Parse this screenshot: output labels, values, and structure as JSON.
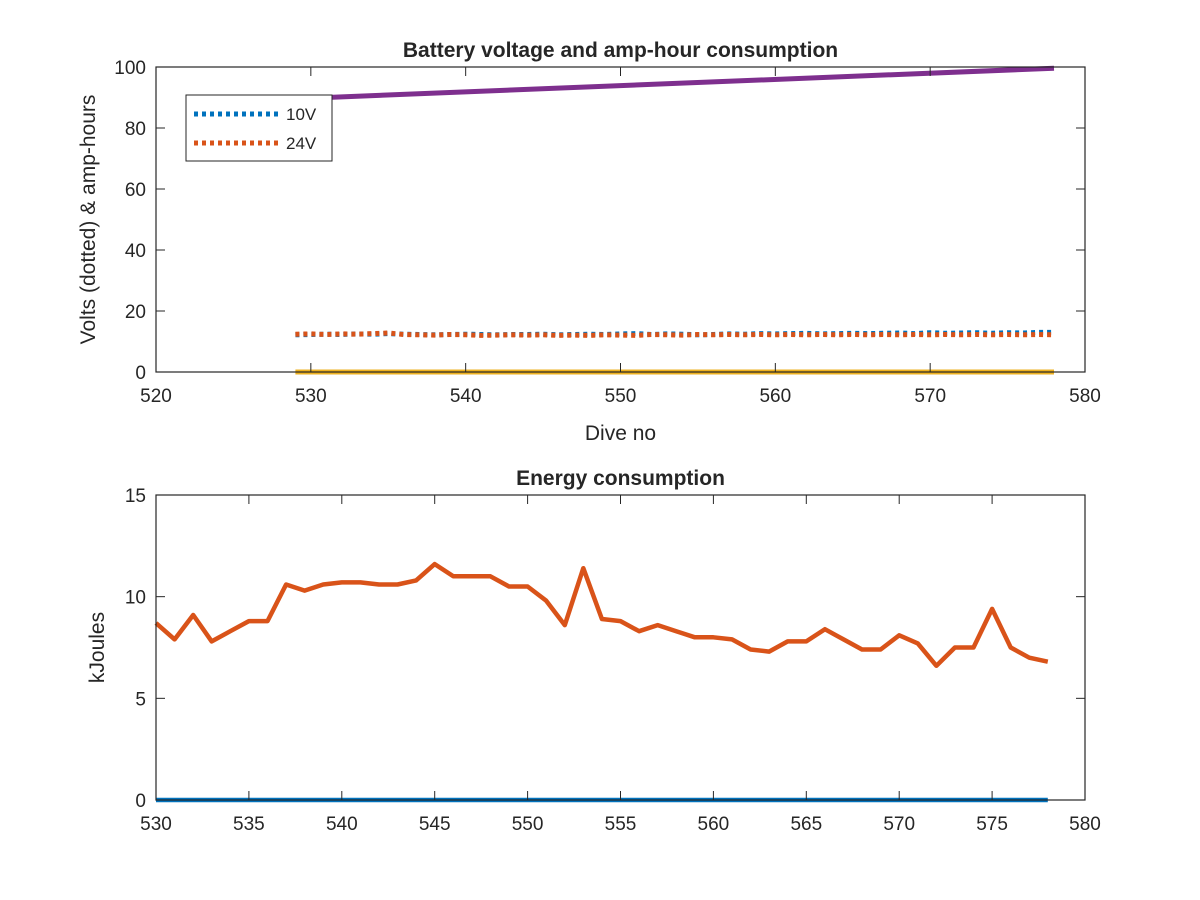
{
  "chart_data": [
    {
      "type": "line",
      "title": "Battery voltage and amp-hour consumption",
      "xlabel": "Dive no",
      "ylabel": "Volts (dotted) & amp-hours",
      "xlim": [
        520,
        580
      ],
      "ylim": [
        0,
        100
      ],
      "xticks": [
        "520",
        "530",
        "540",
        "550",
        "560",
        "570",
        "580"
      ],
      "yticks": [
        "0",
        "20",
        "40",
        "60",
        "80",
        "100"
      ],
      "legend_position": "top-left",
      "series": [
        {
          "name": "10V",
          "style": "dotted",
          "color": "#0072BD",
          "x": [
            529,
            530,
            531,
            532,
            533,
            534,
            535,
            536,
            537,
            538,
            539,
            540,
            541,
            542,
            543,
            544,
            545,
            546,
            547,
            548,
            549,
            550,
            551,
            552,
            553,
            554,
            555,
            556,
            557,
            558,
            559,
            560,
            561,
            562,
            563,
            564,
            565,
            566,
            567,
            568,
            569,
            570,
            571,
            572,
            573,
            574,
            575,
            576,
            577,
            578
          ],
          "y": [
            12.2,
            12.3,
            12.4,
            12.3,
            12.5,
            12.4,
            12.6,
            12.4,
            12.3,
            12.2,
            12.3,
            12.4,
            12.3,
            12.2,
            12.3,
            12.3,
            12.4,
            12.2,
            12.3,
            12.4,
            12.3,
            12.5,
            12.6,
            12.3,
            12.5,
            12.4,
            12.2,
            12.3,
            12.5,
            12.4,
            12.6,
            12.5,
            12.6,
            12.7,
            12.5,
            12.6,
            12.7,
            12.6,
            12.7,
            12.8,
            12.6,
            12.9,
            12.7,
            12.8,
            12.9,
            12.7,
            12.9,
            12.8,
            13.0,
            13.0
          ]
        },
        {
          "name": "24V",
          "style": "dotted",
          "color": "#D95319",
          "x": [
            529,
            530,
            531,
            532,
            533,
            534,
            535,
            536,
            537,
            538,
            539,
            540,
            541,
            542,
            543,
            544,
            545,
            546,
            547,
            548,
            549,
            550,
            551,
            552,
            553,
            554,
            555,
            556,
            557,
            558,
            559,
            560,
            561,
            562,
            563,
            564,
            565,
            566,
            567,
            568,
            569,
            570,
            571,
            572,
            573,
            574,
            575,
            576,
            577,
            578
          ],
          "y": [
            12.4,
            12.5,
            12.3,
            12.5,
            12.4,
            12.6,
            12.8,
            12.3,
            12.2,
            12.1,
            12.3,
            12.2,
            12.0,
            12.1,
            12.2,
            12.1,
            12.2,
            12.0,
            12.1,
            12.0,
            12.2,
            12.1,
            12.0,
            12.3,
            12.2,
            12.1,
            12.3,
            12.2,
            12.3,
            12.2,
            12.3,
            12.2,
            12.3,
            12.2,
            12.3,
            12.2,
            12.3,
            12.2,
            12.3,
            12.2,
            12.3,
            12.2,
            12.3,
            12.2,
            12.3,
            12.2,
            12.3,
            12.2,
            12.3,
            12.2
          ]
        },
        {
          "style": "solid",
          "color": "#EDB120",
          "x": [
            529,
            578
          ],
          "y": [
            0,
            0
          ]
        },
        {
          "style": "solid",
          "color": "#7E2F8E",
          "x": [
            529,
            578
          ],
          "y": [
            89.6,
            99.6
          ]
        }
      ]
    },
    {
      "type": "line",
      "title": "Energy consumption",
      "xlabel": "",
      "ylabel": "kJoules",
      "xlim": [
        530,
        580
      ],
      "ylim": [
        0,
        15
      ],
      "xticks": [
        "530",
        "535",
        "540",
        "545",
        "550",
        "555",
        "560",
        "565",
        "570",
        "575",
        "580"
      ],
      "yticks": [
        "0",
        "5",
        "10",
        "15"
      ],
      "series": [
        {
          "style": "solid",
          "color": "#0072BD",
          "x": [
            530,
            578
          ],
          "y": [
            0,
            0
          ]
        },
        {
          "style": "solid",
          "color": "#D95319",
          "x": [
            530,
            531,
            532,
            533,
            534,
            535,
            536,
            537,
            538,
            539,
            540,
            541,
            542,
            543,
            544,
            545,
            546,
            547,
            548,
            549,
            550,
            551,
            552,
            553,
            554,
            555,
            556,
            557,
            558,
            559,
            560,
            561,
            562,
            563,
            564,
            565,
            566,
            567,
            568,
            569,
            570,
            571,
            572,
            573,
            574,
            575,
            576,
            577,
            578
          ],
          "y": [
            8.7,
            7.9,
            9.1,
            7.8,
            8.3,
            8.8,
            8.8,
            10.6,
            10.3,
            10.6,
            10.7,
            10.7,
            10.6,
            10.6,
            10.8,
            11.6,
            11.0,
            11.0,
            11.0,
            10.5,
            10.5,
            9.8,
            8.6,
            11.4,
            8.9,
            8.8,
            8.3,
            8.6,
            8.3,
            8.0,
            8.0,
            7.9,
            7.4,
            7.3,
            7.8,
            7.8,
            8.4,
            7.9,
            7.4,
            7.4,
            8.1,
            7.7,
            6.6,
            7.5,
            7.5,
            9.4,
            7.5,
            7.0,
            6.8
          ]
        }
      ]
    }
  ]
}
